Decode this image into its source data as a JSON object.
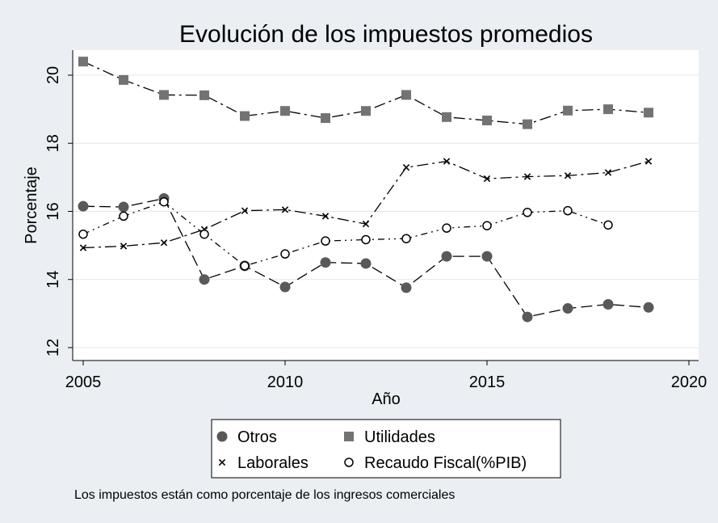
{
  "chart_data": {
    "type": "line",
    "title": "Evolución de los impuestos promedios",
    "xlabel": "Año",
    "ylabel": "Porcentaje",
    "note": "Los impuestos están como porcentaje de los ingresos comerciales",
    "xlim": [
      2005,
      2020
    ],
    "ylim": [
      12,
      20.6
    ],
    "x_ticks": [
      2005,
      2010,
      2015,
      2020
    ],
    "y_ticks": [
      12,
      14,
      16,
      18,
      20
    ],
    "grid": true,
    "legend_position": "bottom",
    "series": [
      {
        "name": "Otros",
        "marker": "filled-circle",
        "dash": "dash",
        "color": "#595959",
        "x": [
          2005,
          2006,
          2007,
          2008,
          2009,
          2010,
          2011,
          2012,
          2013,
          2014,
          2015,
          2016,
          2017,
          2018,
          2019
        ],
        "values": [
          16.15,
          16.13,
          16.38,
          14.0,
          14.4,
          13.78,
          14.5,
          14.47,
          13.76,
          14.68,
          14.68,
          12.9,
          13.15,
          13.27,
          13.18
        ]
      },
      {
        "name": "Utilidades",
        "marker": "filled-square",
        "dash": "dash-dot",
        "color": "#737373",
        "x": [
          2005,
          2006,
          2007,
          2008,
          2009,
          2010,
          2011,
          2012,
          2013,
          2014,
          2015,
          2016,
          2017,
          2018,
          2019
        ],
        "values": [
          20.4,
          19.86,
          19.42,
          19.41,
          18.8,
          18.95,
          18.74,
          18.95,
          19.42,
          18.77,
          18.67,
          18.56,
          18.96,
          19.0,
          18.9
        ]
      },
      {
        "name": "Laborales",
        "marker": "x",
        "dash": "dash-dot",
        "color": "#000000",
        "x": [
          2005,
          2006,
          2007,
          2008,
          2009,
          2010,
          2011,
          2012,
          2013,
          2014,
          2015,
          2016,
          2017,
          2018,
          2019
        ],
        "values": [
          14.93,
          14.98,
          15.08,
          15.47,
          16.02,
          16.05,
          15.86,
          15.63,
          17.29,
          17.47,
          16.96,
          17.02,
          17.05,
          17.14,
          17.47
        ]
      },
      {
        "name": "Recaudo Fiscal(%PIB)",
        "marker": "hollow-circle",
        "dash": "dash-dot-dot",
        "color": "#000000",
        "x": [
          2005,
          2006,
          2007,
          2008,
          2009,
          2010,
          2011,
          2012,
          2013,
          2014,
          2015,
          2016,
          2017,
          2018
        ],
        "values": [
          15.33,
          15.86,
          16.28,
          15.33,
          14.4,
          14.75,
          15.13,
          15.17,
          15.2,
          15.51,
          15.58,
          15.97,
          16.02,
          15.6
        ]
      }
    ]
  }
}
